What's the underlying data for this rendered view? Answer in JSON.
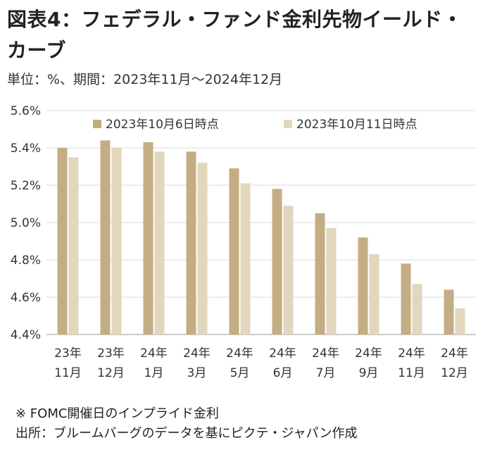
{
  "header": {
    "title": "図表4：フェデラル・ファンド金利先物イールド・カーブ",
    "subtitle": "単位：%、期間：2023年11月～2024年12月"
  },
  "footer": {
    "note": "※ FOMC開催日のインプライド金利",
    "source": "出所：ブルームバーグのデータを基にピクテ・ジャパン作成"
  },
  "colors": {
    "series1": "#c4ad83",
    "series2": "#e2d6bd",
    "grid": "#d9d9d9",
    "axis": "#999999"
  },
  "chart_data": {
    "type": "bar",
    "categories": [
      [
        "23年",
        "11月"
      ],
      [
        "23年",
        "12月"
      ],
      [
        "24年",
        "1月"
      ],
      [
        "24年",
        "3月"
      ],
      [
        "24年",
        "5月"
      ],
      [
        "24年",
        "6月"
      ],
      [
        "24年",
        "7月"
      ],
      [
        "24年",
        "9月"
      ],
      [
        "24年",
        "11月"
      ],
      [
        "24年",
        "12月"
      ]
    ],
    "series": [
      {
        "name": "2023年10月6日時点",
        "values": [
          5.4,
          5.44,
          5.43,
          5.38,
          5.29,
          5.18,
          5.05,
          4.92,
          4.78,
          4.64
        ]
      },
      {
        "name": "2023年10月11日時点",
        "values": [
          5.35,
          5.4,
          5.38,
          5.32,
          5.21,
          5.09,
          4.97,
          4.83,
          4.67,
          4.54
        ]
      }
    ],
    "ylim": [
      4.4,
      5.6
    ],
    "yticks": [
      "4.4%",
      "4.6%",
      "4.8%",
      "5.0%",
      "5.2%",
      "5.4%",
      "5.6%"
    ],
    "grid": true,
    "legend": "top"
  }
}
